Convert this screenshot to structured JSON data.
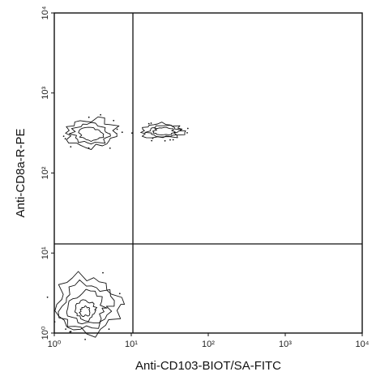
{
  "chart_data": {
    "type": "scatter",
    "subtype": "flow-cytometry-contour",
    "xlabel": "Anti-CD103-BIOT/SA-FITC",
    "ylabel": "Anti-CD8a-R-PE",
    "xscale": "log",
    "yscale": "log",
    "xlim": [
      1,
      10000
    ],
    "ylim": [
      1,
      10000
    ],
    "x_ticks": [
      {
        "value": 1,
        "label": "10⁰"
      },
      {
        "value": 10,
        "label": "10¹"
      },
      {
        "value": 100,
        "label": "10²"
      },
      {
        "value": 1000,
        "label": "10³"
      },
      {
        "value": 10000,
        "label": "10⁴"
      }
    ],
    "y_ticks": [
      {
        "value": 1,
        "label": "10⁰"
      },
      {
        "value": 10,
        "label": "10¹"
      },
      {
        "value": 100,
        "label": "10²"
      },
      {
        "value": 1000,
        "label": "10³"
      },
      {
        "value": 10000,
        "label": "10⁴"
      }
    ],
    "quadrant_gates": {
      "x": 10.5,
      "y": 13
    },
    "grid": false,
    "legend": "none",
    "populations": [
      {
        "x_center": 3.0,
        "y_center": 300,
        "x_range": [
          1.4,
          6.5
        ],
        "y_range": [
          210,
          470
        ]
      },
      {
        "x_center": 28,
        "y_center": 330,
        "x_range": [
          13,
          48
        ],
        "y_range": [
          270,
          420
        ]
      },
      {
        "x_center": 2.5,
        "y_center": 1.8,
        "x_range": [
          1.0,
          7.0
        ],
        "y_range": [
          1.0,
          5.2
        ]
      }
    ]
  }
}
